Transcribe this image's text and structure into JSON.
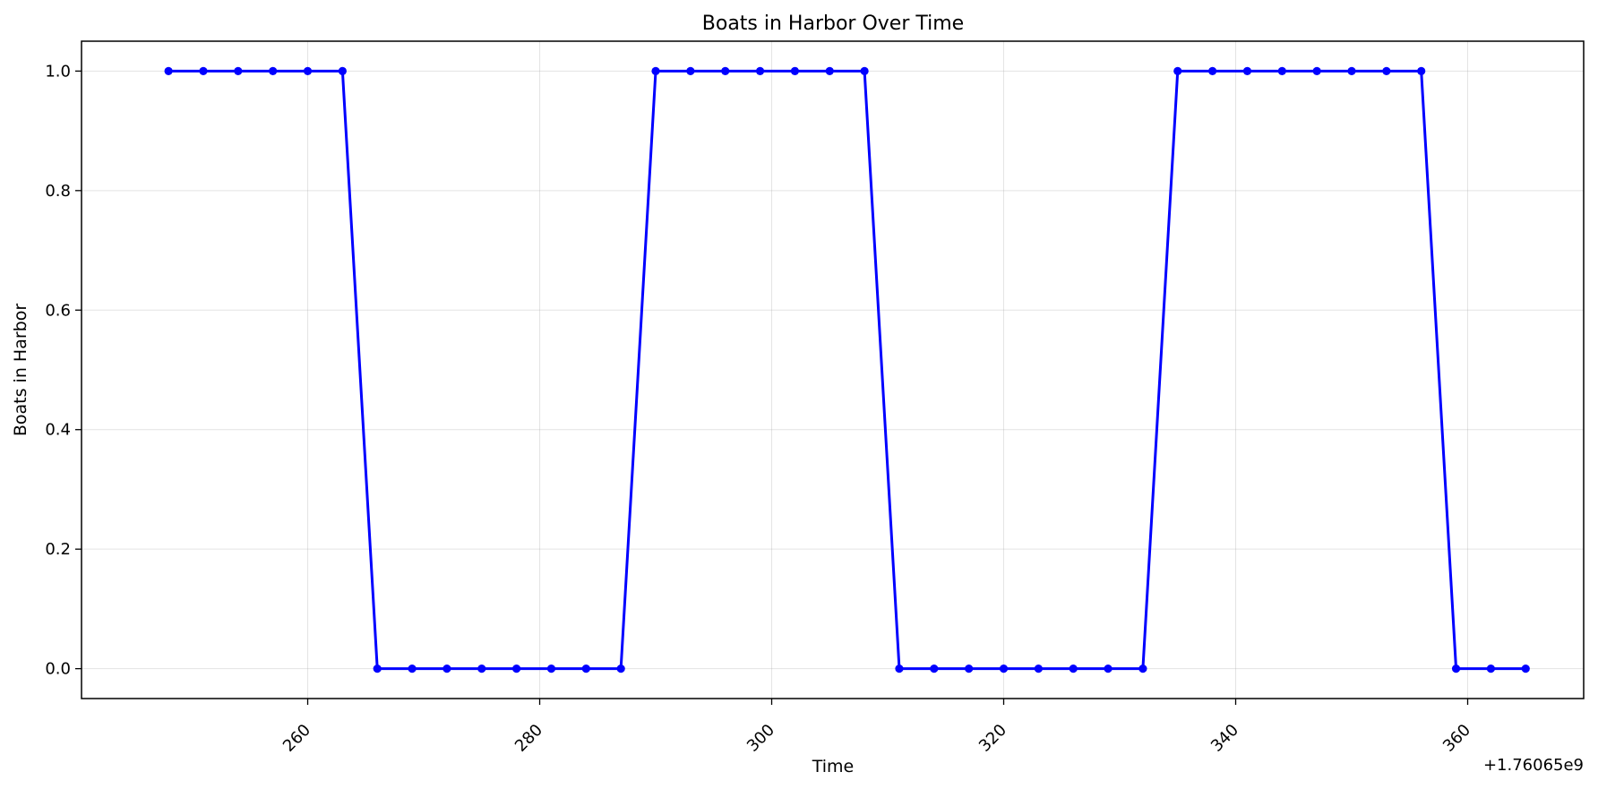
{
  "chart_data": {
    "type": "line",
    "title": "Boats in Harbor Over Time",
    "xlabel": "Time",
    "ylabel": "Boats in Harbor",
    "x_offset_label": "+1.76065e9",
    "xlim": [
      240.5,
      370
    ],
    "ylim": [
      -0.05,
      1.05
    ],
    "xticks": [
      260,
      280,
      300,
      320,
      340,
      360
    ],
    "xtick_labels": [
      "260",
      "280",
      "300",
      "320",
      "340",
      "360"
    ],
    "yticks": [
      0.0,
      0.2,
      0.4,
      0.6,
      0.8,
      1.0
    ],
    "ytick_labels": [
      "0.0",
      "0.2",
      "0.4",
      "0.6",
      "0.8",
      "1.0"
    ],
    "grid": true,
    "color": "#0000ff",
    "series": [
      {
        "x": [
          248,
          251,
          254,
          257,
          260,
          263,
          266,
          269,
          272,
          275,
          278,
          281,
          284,
          287,
          290,
          293,
          296,
          299,
          302,
          305,
          308,
          311,
          314,
          317,
          320,
          323,
          326,
          329,
          332,
          335,
          338,
          341,
          344,
          347,
          350,
          353,
          356,
          359,
          362,
          365
        ],
        "values": [
          1,
          1,
          1,
          1,
          1,
          1,
          0,
          0,
          0,
          0,
          0,
          0,
          0,
          0,
          1,
          1,
          1,
          1,
          1,
          1,
          1,
          0,
          0,
          0,
          0,
          0,
          0,
          0,
          0,
          1,
          1,
          1,
          1,
          1,
          1,
          1,
          1,
          0,
          0,
          0
        ]
      }
    ]
  }
}
